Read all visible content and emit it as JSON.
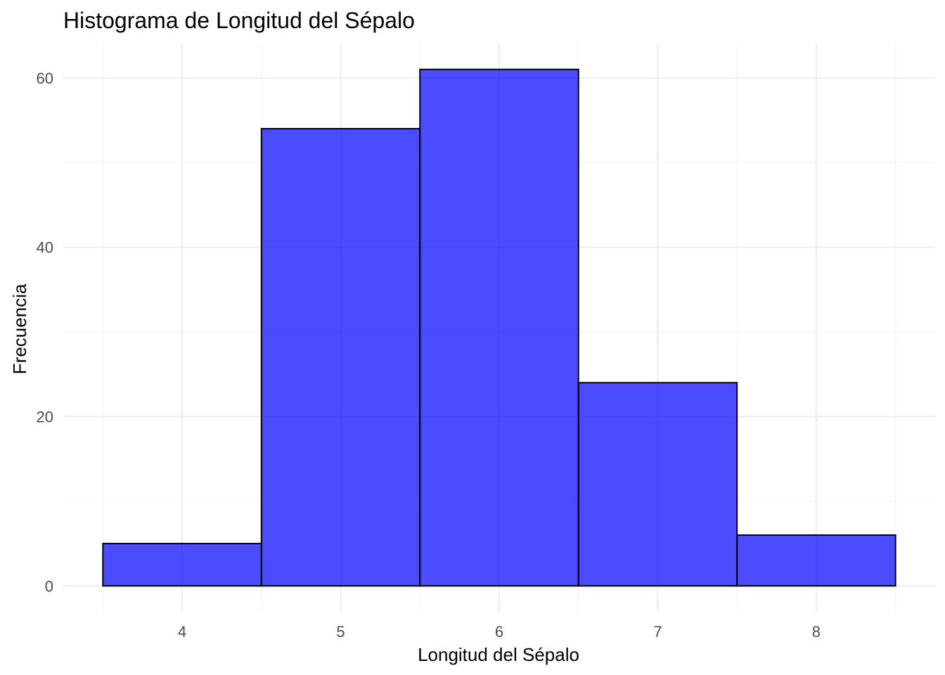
{
  "chart_data": {
    "type": "bar",
    "title": "Histograma de Longitud del Sépalo",
    "xlabel": "Longitud del Sépalo",
    "ylabel": "Frecuencia",
    "bins": [
      {
        "x0": 3.5,
        "x1": 4.5,
        "count": 5
      },
      {
        "x0": 4.5,
        "x1": 5.5,
        "count": 54
      },
      {
        "x0": 5.5,
        "x1": 6.5,
        "count": 61
      },
      {
        "x0": 6.5,
        "x1": 7.5,
        "count": 24
      },
      {
        "x0": 7.5,
        "x1": 8.5,
        "count": 6
      }
    ],
    "xlim": [
      3.25,
      8.75
    ],
    "ylim": [
      -3.05,
      64.05
    ],
    "xticks": [
      4,
      5,
      6,
      7,
      8
    ],
    "xtick_labels": [
      "4",
      "5",
      "6",
      "7",
      "8"
    ],
    "yticks": [
      0,
      20,
      40,
      60
    ],
    "ytick_labels": [
      "0",
      "20",
      "40",
      "60"
    ],
    "yminor": [
      10,
      30,
      50
    ],
    "xminor": [
      3.5,
      4.5,
      5.5,
      6.5,
      7.5,
      8.5
    ],
    "grid": true,
    "legend": "none",
    "bar_color": "#0000ff",
    "bar_opacity": 0.7,
    "border_color": "#000000"
  }
}
